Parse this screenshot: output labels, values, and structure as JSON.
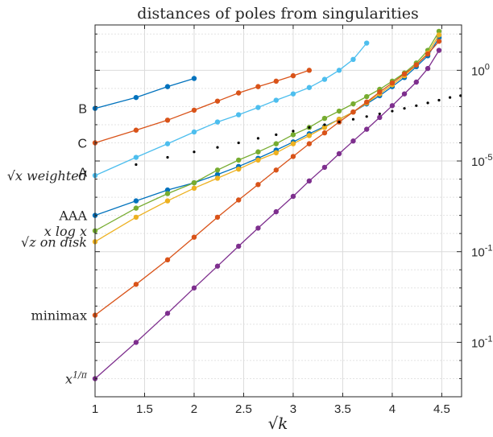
{
  "chart_data": {
    "type": "line",
    "title": "distances of poles from singularities",
    "xlabel": "√k",
    "ylabel": "",
    "xlim": [
      1,
      4.7
    ],
    "ylim_log10": [
      -18,
      2.5
    ],
    "y_scale": "log",
    "grid": true,
    "x_ticks": [
      1,
      1.5,
      2,
      2.5,
      3,
      3.5,
      4,
      4.5
    ],
    "x_tick_labels": [
      "1",
      "1.5",
      "2",
      "2.5",
      "3",
      "3.5",
      "4",
      "4.5"
    ],
    "y_ticks_log10": [
      0,
      -5,
      -10,
      -15
    ],
    "y_tick_labels": [
      {
        "base": "10",
        "exp": "0"
      },
      {
        "base": "10",
        "exp": "-5"
      },
      {
        "base": "10",
        "exp": "-10"
      },
      {
        "base": "10",
        "exp": "-15"
      }
    ],
    "series": [
      {
        "name": "B",
        "color": "#0072BD",
        "style": "line",
        "x": [
          1,
          1.414,
          1.732,
          2.0
        ],
        "log10_y": [
          -2.1,
          -1.5,
          -0.9,
          -0.45
        ]
      },
      {
        "name": "C",
        "color": "#D95319",
        "style": "line",
        "x": [
          1,
          1.414,
          1.732,
          2.0,
          2.236,
          2.449,
          2.646,
          2.828,
          3.0,
          3.162
        ],
        "log10_y": [
          -4.0,
          -3.3,
          -2.75,
          -2.2,
          -1.7,
          -1.25,
          -0.9,
          -0.6,
          -0.3,
          0.0
        ]
      },
      {
        "name": "√x weighted",
        "color": "#4DBEEE",
        "style": "line",
        "x": [
          1,
          1.414,
          1.732,
          2.0,
          2.236,
          2.449,
          2.646,
          2.828,
          3.0,
          3.162,
          3.317,
          3.464,
          3.606,
          3.742
        ],
        "log10_y": [
          -5.8,
          -4.8,
          -4.05,
          -3.4,
          -2.85,
          -2.45,
          -2.05,
          -1.65,
          -1.3,
          -0.95,
          -0.5,
          0.0,
          0.6,
          1.5
        ]
      },
      {
        "name": "AAA",
        "color": "#0072BD",
        "style": "line",
        "x": [
          1,
          1.414,
          1.732,
          2.0,
          2.236,
          2.449,
          2.646,
          2.828,
          3.0,
          3.162,
          3.317,
          3.464,
          3.606,
          3.742,
          3.873,
          4.0,
          4.123,
          4.243,
          4.359,
          4.472
        ],
        "log10_y": [
          -8.0,
          -7.2,
          -6.6,
          -6.2,
          -5.75,
          -5.3,
          -4.85,
          -4.4,
          -3.95,
          -3.5,
          -3.1,
          -2.7,
          -2.3,
          -1.85,
          -1.4,
          -0.9,
          -0.4,
          0.2,
          0.8,
          1.8
        ]
      },
      {
        "name": "x log x",
        "color": "#77AC30",
        "style": "line",
        "x": [
          1,
          1.414,
          1.732,
          2.0,
          2.236,
          2.449,
          2.646,
          2.828,
          3.0,
          3.162,
          3.317,
          3.464,
          3.606,
          3.742,
          3.873,
          4.0,
          4.123,
          4.243,
          4.359,
          4.472
        ],
        "log10_y": [
          -8.85,
          -7.6,
          -6.8,
          -6.2,
          -5.5,
          -4.95,
          -4.5,
          -4.05,
          -3.55,
          -3.15,
          -2.65,
          -2.25,
          -1.85,
          -1.45,
          -1.05,
          -0.6,
          -0.15,
          0.4,
          1.1,
          2.15
        ]
      },
      {
        "name": "√z on disk",
        "color": "#EDB120",
        "style": "line",
        "x": [
          1,
          1.414,
          1.732,
          2.0,
          2.236,
          2.449,
          2.646,
          2.828,
          3.0,
          3.162,
          3.317,
          3.464,
          3.606,
          3.742,
          3.873,
          4.0,
          4.123,
          4.243,
          4.359,
          4.472
        ],
        "log10_y": [
          -9.45,
          -8.1,
          -7.2,
          -6.5,
          -5.95,
          -5.45,
          -4.95,
          -4.55,
          -4.05,
          -3.6,
          -3.15,
          -2.7,
          -2.3,
          -1.8,
          -1.3,
          -0.8,
          -0.3,
          0.3,
          0.95,
          1.95
        ]
      },
      {
        "name": "minimax",
        "color": "#D95319",
        "style": "line",
        "x": [
          1,
          1.414,
          1.732,
          2.0,
          2.236,
          2.449,
          2.646,
          2.828,
          3.0,
          3.162,
          3.317,
          3.464,
          3.606,
          3.742,
          3.873,
          4.0,
          4.123,
          4.243,
          4.359,
          4.472
        ],
        "log10_y": [
          -13.5,
          -11.8,
          -10.45,
          -9.2,
          -8.1,
          -7.15,
          -6.3,
          -5.5,
          -4.75,
          -4.05,
          -3.45,
          -2.85,
          -2.3,
          -1.75,
          -1.2,
          -0.7,
          -0.2,
          0.3,
          0.9,
          1.6
        ]
      },
      {
        "name": "x^{1/π}",
        "color": "#7E2F8E",
        "style": "line",
        "x": [
          1,
          1.414,
          1.732,
          2.0,
          2.236,
          2.449,
          2.646,
          2.828,
          3.0,
          3.162,
          3.317,
          3.464,
          3.606,
          3.742,
          3.873,
          4.0,
          4.123,
          4.243,
          4.359,
          4.472
        ],
        "log10_y": [
          -17.0,
          -15.0,
          -13.4,
          -12.0,
          -10.8,
          -9.7,
          -8.7,
          -7.8,
          -6.95,
          -6.1,
          -5.35,
          -4.6,
          -3.9,
          -3.25,
          -2.6,
          -1.95,
          -1.3,
          -0.65,
          0.1,
          1.1
        ]
      },
      {
        "name": "A",
        "color": "#000000",
        "style": "dots",
        "x": [
          1.414,
          1.732,
          2.0,
          2.236,
          2.449,
          2.646,
          2.828,
          3.0,
          3.162,
          3.317,
          3.464,
          3.606,
          3.742,
          3.873,
          4.0,
          4.123,
          4.243,
          4.359,
          4.472,
          4.583,
          4.69
        ],
        "log10_y": [
          -5.2,
          -4.8,
          -4.5,
          -4.25,
          -4.0,
          -3.75,
          -3.55,
          -3.35,
          -3.15,
          -3.0,
          -2.85,
          -2.7,
          -2.55,
          -2.4,
          -2.25,
          -2.1,
          -1.95,
          -1.8,
          -1.65,
          -1.5,
          -1.4
        ]
      }
    ],
    "left_labels": [
      {
        "text": "B",
        "style": "sans"
      },
      {
        "text": "C",
        "style": "sans"
      },
      {
        "text": "√x weighted",
        "style": "math"
      },
      {
        "text": "A",
        "style": "sans"
      },
      {
        "text": "AAA",
        "style": "serif"
      },
      {
        "text": "x log x",
        "style": "math"
      },
      {
        "text": "√z on disk",
        "style": "math"
      },
      {
        "text": "minimax",
        "style": "serif"
      },
      {
        "text": "x^{1/π}",
        "style": "math"
      }
    ]
  }
}
